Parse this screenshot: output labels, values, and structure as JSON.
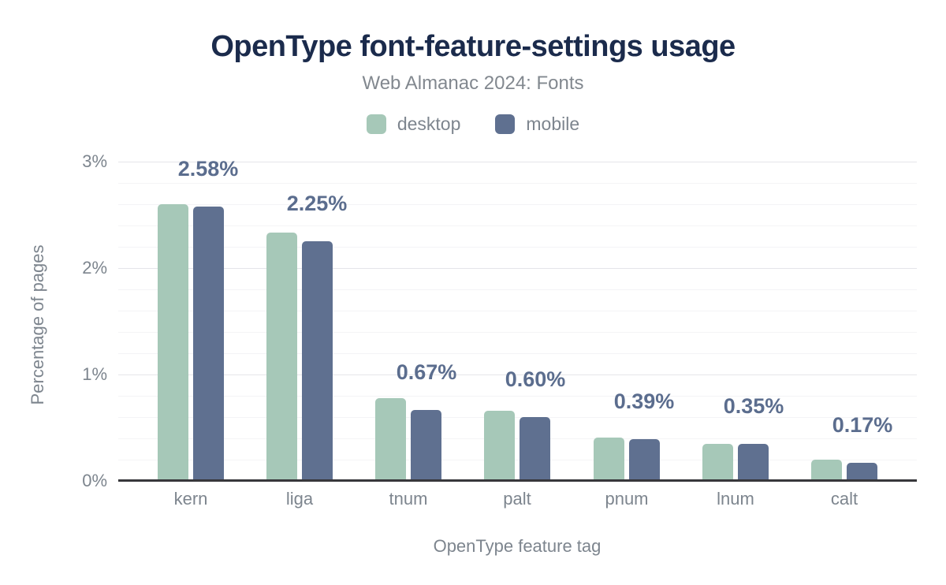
{
  "chart_data": {
    "type": "bar",
    "title": "OpenType font-feature-settings usage",
    "subtitle": "Web Almanac 2024: Fonts",
    "xlabel": "OpenType feature tag",
    "ylabel": "Percentage of pages",
    "categories": [
      "kern",
      "liga",
      "tnum",
      "palt",
      "pnum",
      "lnum",
      "calt"
    ],
    "series": [
      {
        "name": "desktop",
        "color": "#a6c8b8",
        "values": [
          2.6,
          2.33,
          0.78,
          0.66,
          0.41,
          0.35,
          0.2
        ]
      },
      {
        "name": "mobile",
        "color": "#5f7090",
        "values": [
          2.58,
          2.25,
          0.67,
          0.6,
          0.39,
          0.35,
          0.17
        ]
      }
    ],
    "value_labels": [
      "2.58%",
      "2.25%",
      "0.67%",
      "0.60%",
      "0.39%",
      "0.35%",
      "0.17%"
    ],
    "value_labels_refer_to": "mobile",
    "yticks": [
      {
        "value": 0,
        "label": "0%"
      },
      {
        "value": 1,
        "label": "1%"
      },
      {
        "value": 2,
        "label": "2%"
      },
      {
        "value": 3,
        "label": "3%"
      }
    ],
    "ylim": [
      0,
      3
    ],
    "grid": {
      "major_every_pct": 1,
      "minor_every_pct": 0.2,
      "orientation": "horizontal"
    },
    "legend_position": "top-center"
  },
  "colors": {
    "title": "#1b2b4c",
    "muted_text": "#7d858e",
    "value_label": "#5b6d8e",
    "axis_line": "#37373b",
    "gridline_major": "#e5e5e9",
    "gridline_minor": "#f4f4f6",
    "background": "#ffffff"
  }
}
